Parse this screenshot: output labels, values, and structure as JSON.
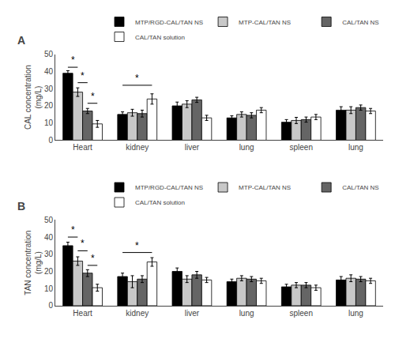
{
  "chart_data": [
    {
      "type": "bar",
      "title": "A",
      "ylabel": "CAL concentration\n(mg/L)",
      "categories": [
        "Heart",
        "kidney",
        "liver",
        "lung",
        "spleen",
        "lung"
      ],
      "series": [
        {
          "name": "MTP/RGD-CAL/TAN NS",
          "color": "#000000",
          "values": [
            39.0,
            15.0,
            20.0,
            13.0,
            10.5,
            17.5
          ],
          "errors": [
            1.5,
            1.5,
            2.2,
            1.2,
            1.5,
            2.0
          ]
        },
        {
          "name": "MTP-CAL/TAN NS",
          "color": "#c8c8c8",
          "values": [
            28.0,
            16.0,
            21.0,
            15.0,
            11.5,
            17.5
          ],
          "errors": [
            2.5,
            2.0,
            2.0,
            1.5,
            1.8,
            2.0
          ]
        },
        {
          "name": "CAL/TAN NS",
          "color": "#656565",
          "values": [
            17.0,
            15.5,
            23.5,
            14.5,
            12.0,
            19.0
          ],
          "errors": [
            1.5,
            2.0,
            1.5,
            1.5,
            1.5,
            1.5
          ]
        },
        {
          "name": "CAL/TAN solution",
          "color": "#ffffff",
          "values": [
            9.5,
            24.0,
            13.0,
            17.5,
            13.5,
            17.0
          ],
          "errors": [
            2.0,
            3.0,
            1.5,
            1.5,
            1.5,
            1.5
          ]
        }
      ],
      "ylim": [
        0,
        50
      ],
      "yticks": [
        0,
        10,
        20,
        30,
        40,
        50
      ],
      "grid": false,
      "legend": "upper right",
      "annotations": [
        {
          "text": "*",
          "x": 0,
          "series": [
            "MTP/RGD-CAL/TAN NS",
            "MTP-CAL/TAN NS"
          ],
          "y": 42.5
        },
        {
          "text": "*",
          "x": 0,
          "series": [
            "MTP-CAL/TAN NS",
            "CAL/TAN NS"
          ],
          "y": 33.5
        },
        {
          "text": "*",
          "x": 0,
          "series": [
            "CAL/TAN NS",
            "CAL/TAN solution"
          ],
          "y": 21.5
        },
        {
          "text": "*",
          "x": 1,
          "series": [
            "MTP/RGD-CAL/TAN NS",
            "CAL/TAN solution"
          ],
          "y": 32.0
        }
      ]
    },
    {
      "type": "bar",
      "title": "B",
      "ylabel": "TAN concentration\n(mg/L)",
      "categories": [
        "Heart",
        "kidney",
        "liver",
        "lung",
        "spleen",
        "lung"
      ],
      "series": [
        {
          "name": "MTP/RGD-CAL/TAN NS",
          "color": "#000000",
          "values": [
            35.0,
            17.0,
            20.0,
            14.0,
            11.0,
            15.0
          ],
          "errors": [
            2.0,
            2.0,
            2.0,
            1.5,
            1.5,
            2.0
          ]
        },
        {
          "name": "MTP-CAL/TAN NS",
          "color": "#c8c8c8",
          "values": [
            26.0,
            14.0,
            15.5,
            16.0,
            12.0,
            16.0
          ],
          "errors": [
            2.5,
            3.5,
            2.0,
            1.5,
            1.5,
            2.0
          ]
        },
        {
          "name": "CAL/TAN NS",
          "color": "#656565",
          "values": [
            19.0,
            15.5,
            18.0,
            15.5,
            12.0,
            15.5
          ],
          "errors": [
            2.0,
            2.0,
            2.0,
            1.5,
            1.5,
            1.5
          ]
        },
        {
          "name": "CAL/TAN solution",
          "color": "#ffffff",
          "values": [
            10.5,
            25.5,
            15.0,
            14.5,
            10.5,
            14.5
          ],
          "errors": [
            2.0,
            2.5,
            1.5,
            1.5,
            1.5,
            1.5
          ]
        }
      ],
      "ylim": [
        0,
        50
      ],
      "yticks": [
        0,
        10,
        20,
        30,
        40,
        50
      ],
      "grid": false,
      "legend": "upper right",
      "annotations": [
        {
          "text": "*",
          "x": 0,
          "series": [
            "MTP/RGD-CAL/TAN NS",
            "MTP-CAL/TAN NS"
          ],
          "y": 40.0
        },
        {
          "text": "*",
          "x": 0,
          "series": [
            "MTP-CAL/TAN NS",
            "CAL/TAN NS"
          ],
          "y": 32.0
        },
        {
          "text": "*",
          "x": 0,
          "series": [
            "CAL/TAN NS",
            "CAL/TAN solution"
          ],
          "y": 23.5
        },
        {
          "text": "*",
          "x": 1,
          "series": [
            "MTP/RGD-CAL/TAN NS",
            "CAL/TAN solution"
          ],
          "y": 31.0
        }
      ]
    }
  ]
}
